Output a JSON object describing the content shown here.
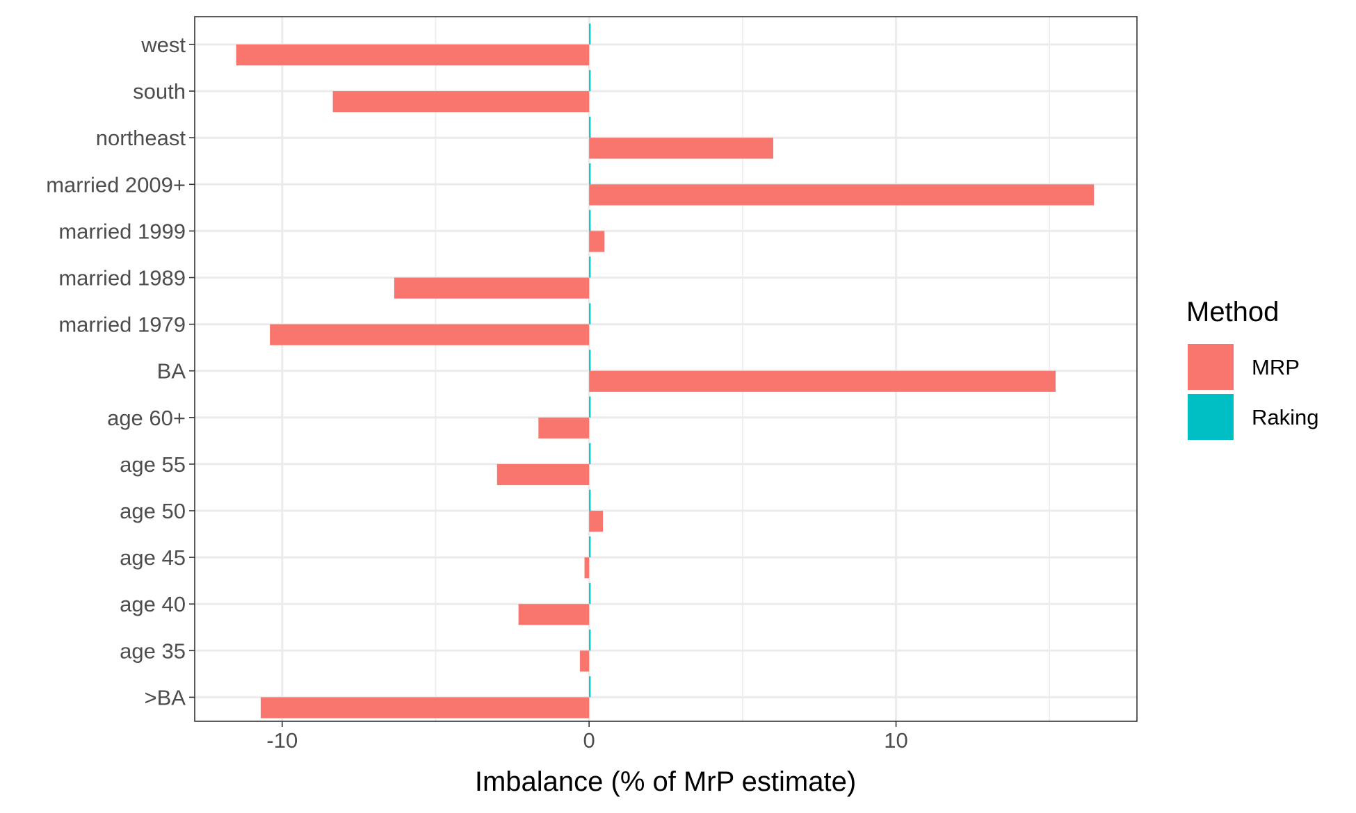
{
  "chart_data": {
    "type": "bar",
    "orientation": "horizontal",
    "categories": [
      "west",
      "south",
      "northeast",
      "married 2009+",
      "married 1999",
      "married 1989",
      "married 1979",
      "BA",
      "age 60+",
      "age 55",
      "age 50",
      "age 45",
      "age 40",
      "age 35",
      ">BA"
    ],
    "series": [
      {
        "name": "MRP",
        "color": "#F8766D",
        "values": [
          -11.5,
          -8.35,
          6.0,
          16.45,
          0.5,
          -6.35,
          -10.4,
          15.2,
          -1.65,
          -3.0,
          0.45,
          -0.15,
          -2.3,
          -0.3,
          -10.7
        ]
      },
      {
        "name": "Raking",
        "color": "#00BFC4",
        "values": [
          0.05,
          0.05,
          0.05,
          0.05,
          0.05,
          0.05,
          0.05,
          0.05,
          0.05,
          0.05,
          0.05,
          0.05,
          0.05,
          0.05,
          0.05
        ]
      }
    ],
    "xlabel": "Imbalance (% of MrP estimate)",
    "ylabel": "",
    "xlim": [
      -12.85,
      17.85
    ],
    "xticks": [
      -10,
      0,
      10
    ],
    "xtick_labels": [
      "-10",
      "0",
      "10"
    ],
    "grid": true,
    "legend": {
      "title": "Method",
      "position": "right"
    }
  }
}
